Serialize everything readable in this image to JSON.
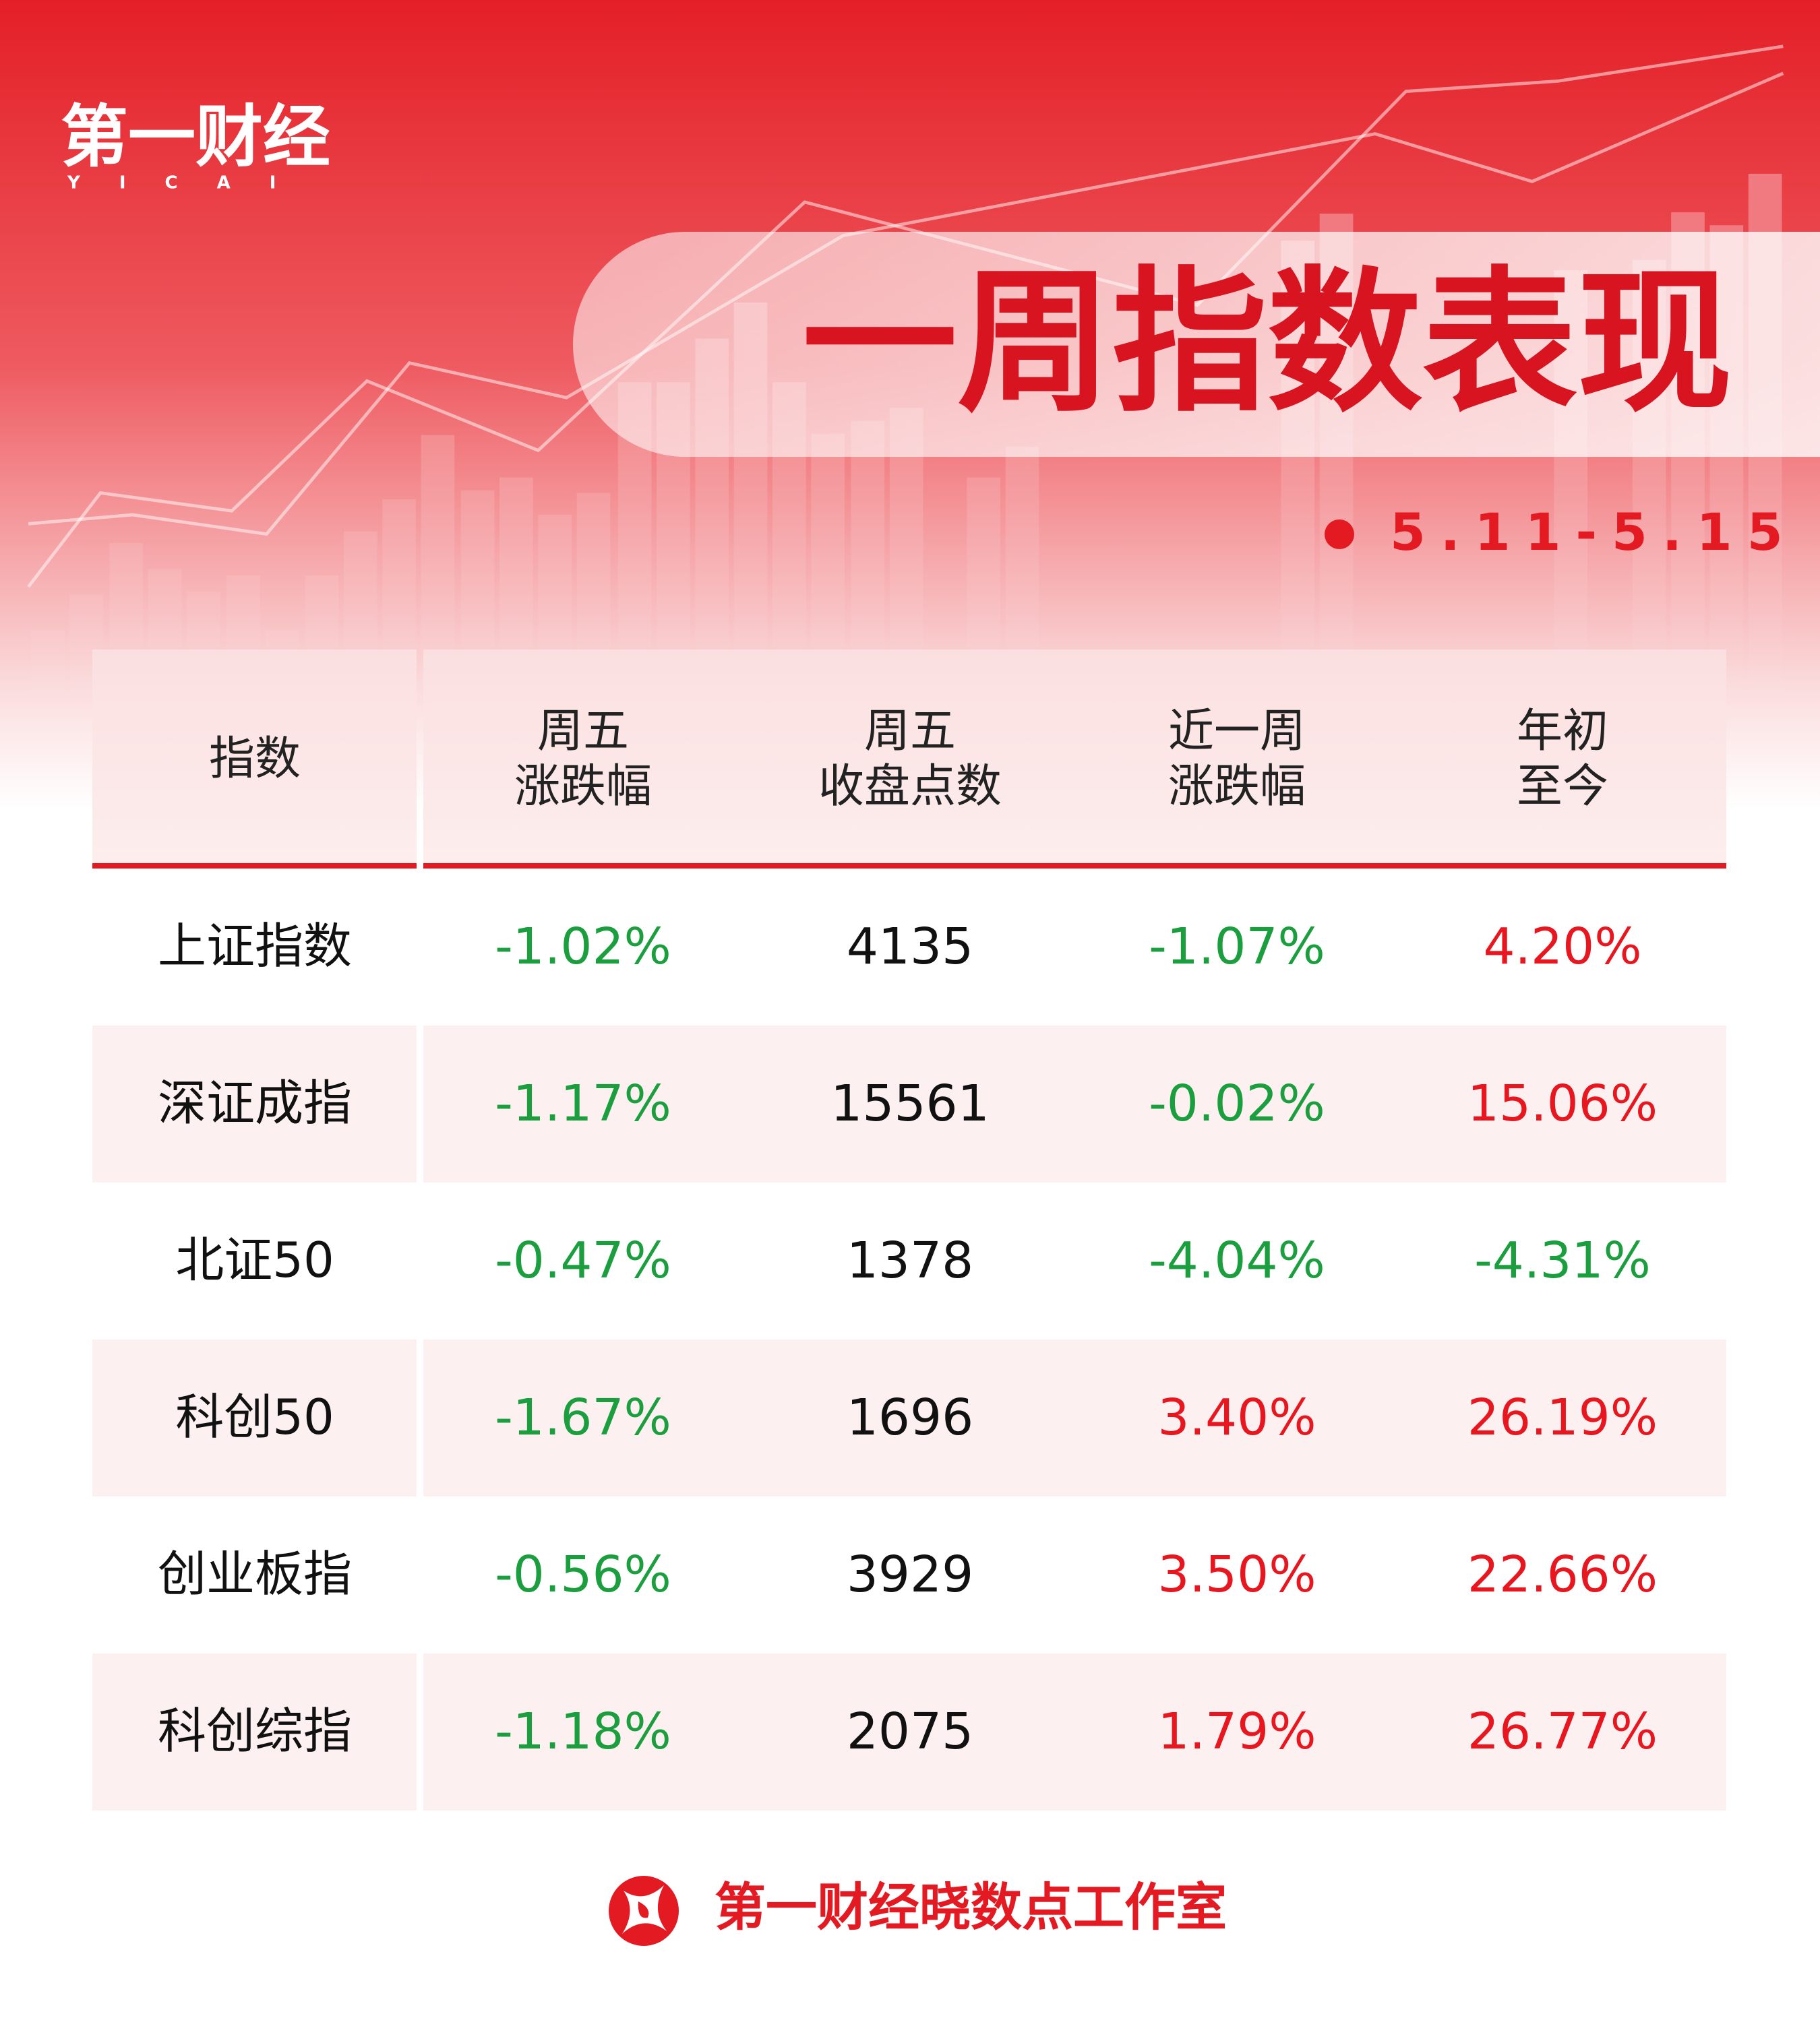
{
  "header": {
    "logo": "第一财经",
    "logo_sub": "YICAI",
    "title": "一周指数表现",
    "date": "5.11-5.15"
  },
  "table": {
    "headers": [
      [
        "指数"
      ],
      [
        "周五",
        "涨跌幅"
      ],
      [
        "周五",
        "收盘点数"
      ],
      [
        "近一周",
        "涨跌幅"
      ],
      [
        "年初",
        "至今"
      ]
    ],
    "rows": [
      [
        "上证指数",
        "-1.02%",
        "4135",
        "-1.07%",
        "4.20%"
      ],
      [
        "深证成指",
        "-1.17%",
        "15561",
        "-0.02%",
        "15.06%"
      ],
      [
        "北证50",
        "-0.47%",
        "1378",
        "-4.04%",
        "-4.31%"
      ],
      [
        "科创50",
        "-1.67%",
        "1696",
        "3.40%",
        "26.19%"
      ],
      [
        "创业板指",
        "-0.56%",
        "3929",
        "3.50%",
        "22.66%"
      ],
      [
        "科创综指",
        "-1.18%",
        "2075",
        "1.79%",
        "26.77%"
      ]
    ]
  },
  "footer": {
    "text": "第一财经晓数点工作室"
  }
}
